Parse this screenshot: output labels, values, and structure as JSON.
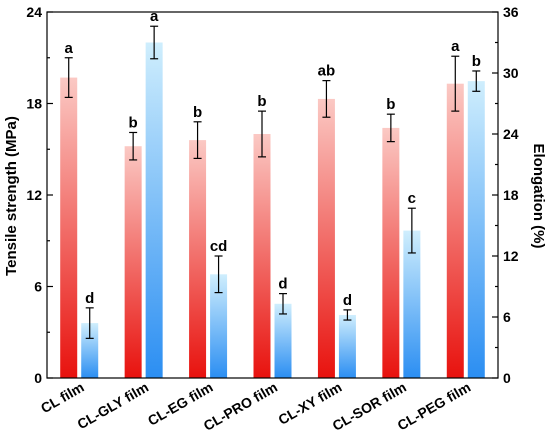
{
  "chart_data": {
    "type": "bar",
    "categories": [
      "CL film",
      "CL-GLY film",
      "CL-EG film",
      "CL-PRO film",
      "CL-XY film",
      "CL-SOR film",
      "CL-PEG film"
    ],
    "series": [
      {
        "name": "Tensile strength",
        "axis": "left",
        "values": [
          19.7,
          15.2,
          15.6,
          16.0,
          18.3,
          16.4,
          19.3
        ],
        "errors": [
          1.3,
          0.9,
          1.2,
          1.5,
          1.2,
          0.9,
          1.8
        ],
        "labels": [
          "a",
          "b",
          "b",
          "b",
          "ab",
          "b",
          "a"
        ],
        "color_bottom": "#e8120e",
        "color_top": "#fbc9c4"
      },
      {
        "name": "Elongation",
        "axis": "right",
        "values": [
          5.4,
          33.0,
          10.2,
          7.3,
          6.2,
          14.5,
          29.2
        ],
        "errors": [
          1.5,
          1.6,
          1.8,
          1.0,
          0.5,
          2.2,
          1.0
        ],
        "labels": [
          "d",
          "a",
          "cd",
          "d",
          "d",
          "c",
          "b"
        ],
        "color_bottom": "#2b8ef2",
        "color_top": "#cfeefd"
      }
    ],
    "ylabel_left": "Tensile strength (MPa)",
    "ylabel_right": "Elongation (%)",
    "ylim_left": [
      0,
      24
    ],
    "yticks_left": [
      "0",
      "6",
      "12",
      "18",
      "24"
    ],
    "ylim_right": [
      0,
      36
    ],
    "yticks_right": [
      "0",
      "6",
      "12",
      "18",
      "24",
      "30",
      "36"
    ],
    "grid": false
  }
}
